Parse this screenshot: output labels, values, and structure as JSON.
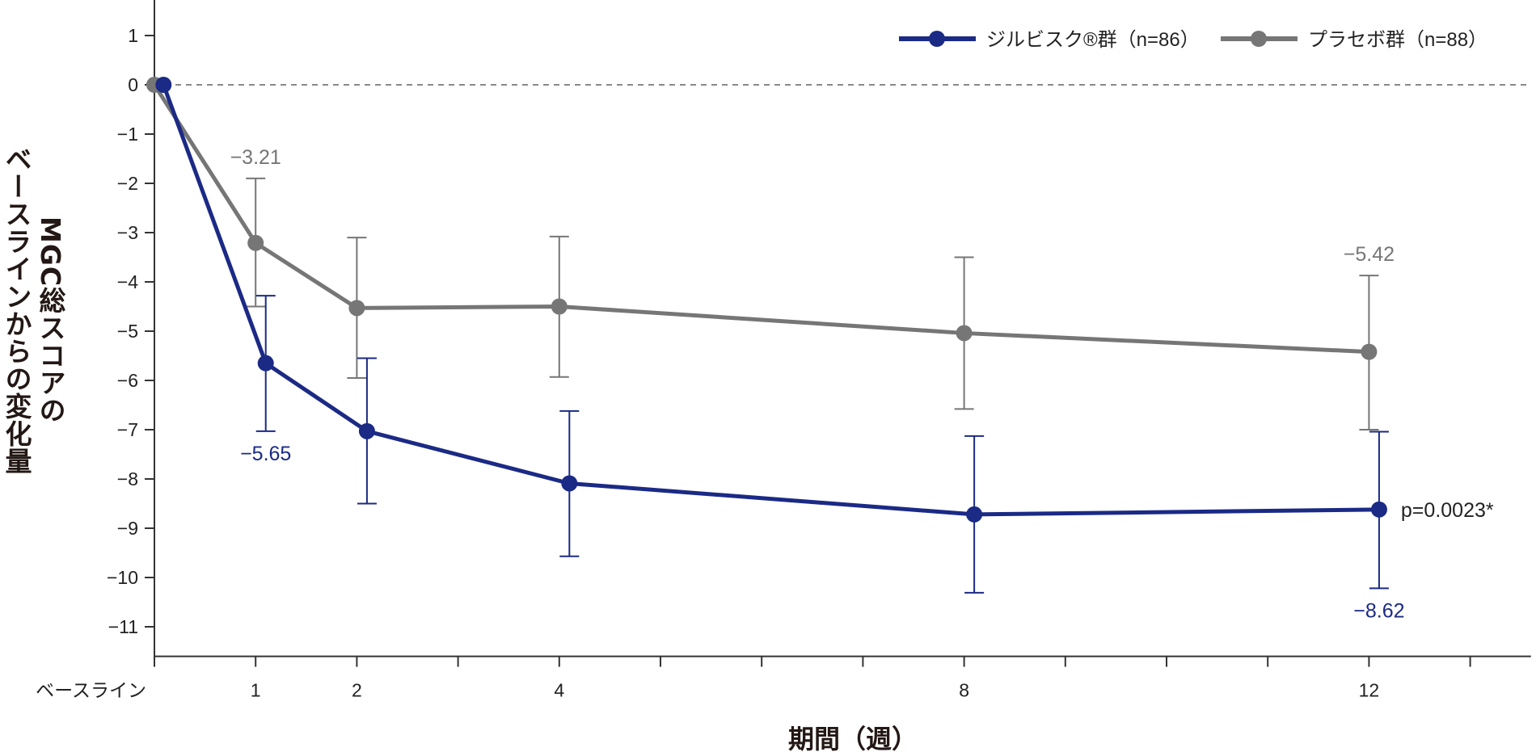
{
  "chart_data": {
    "type": "line",
    "xlabel": "期間（週）",
    "ylabel_lines": [
      "ベースラインからの変化量",
      "MGC総スコアの"
    ],
    "ylim": [
      -11.6,
      1.7
    ],
    "xlim": [
      0,
      13.6
    ],
    "yticks": [
      1,
      0,
      -1,
      -2,
      -3,
      -4,
      -5,
      -6,
      -7,
      -8,
      -9,
      -10,
      -11
    ],
    "ytick_labels": [
      "1",
      "0",
      "−1",
      "−2",
      "−3",
      "−4",
      "−5",
      "−6",
      "−7",
      "−8",
      "−9",
      "−10",
      "−11"
    ],
    "xticks_minor": [
      1,
      2,
      3,
      4,
      5,
      6,
      7,
      8,
      9,
      10,
      11,
      12,
      13
    ],
    "xtick_labels": [
      {
        "x": 0,
        "label": "ベースライン"
      },
      {
        "x": 1,
        "label": "1"
      },
      {
        "x": 2,
        "label": "2"
      },
      {
        "x": 4,
        "label": "4"
      },
      {
        "x": 8,
        "label": "8"
      },
      {
        "x": 12,
        "label": "12"
      }
    ],
    "reference_line": {
      "y": 0,
      "style": "dashed"
    },
    "legend_position": "top-right",
    "series": [
      {
        "name": "ジルビスク®群（n=86）",
        "color": "#1b2a85",
        "x": [
          0,
          1,
          2,
          4,
          8,
          12
        ],
        "y": [
          0,
          -5.65,
          -7.03,
          -8.09,
          -8.72,
          -8.62
        ],
        "err_upper": [
          null,
          -4.28,
          -5.55,
          -6.62,
          -7.13,
          -7.04
        ],
        "err_lower": [
          null,
          -7.03,
          -8.5,
          -9.57,
          -10.31,
          -10.22
        ]
      },
      {
        "name": "プラセボ群（n=88）",
        "color": "#767676",
        "x": [
          0,
          1,
          2,
          4,
          8,
          12
        ],
        "y": [
          0,
          -3.21,
          -4.53,
          -4.5,
          -5.04,
          -5.42
        ],
        "err_upper": [
          null,
          -1.9,
          -3.1,
          -3.08,
          -3.5,
          -3.87
        ],
        "err_lower": [
          null,
          -4.5,
          -5.95,
          -5.93,
          -6.58,
          -7.0
        ]
      }
    ],
    "annotations": [
      {
        "text": "−3.21",
        "series": 1,
        "x": 1,
        "position": "above"
      },
      {
        "text": "−5.65",
        "series": 0,
        "x": 1,
        "position": "below"
      },
      {
        "text": "−5.42",
        "series": 1,
        "x": 12,
        "position": "above"
      },
      {
        "text": "−8.62",
        "series": 0,
        "x": 12,
        "position": "below"
      },
      {
        "text": "p=0.0023*",
        "series": 0,
        "x": 12,
        "position": "right"
      }
    ]
  }
}
